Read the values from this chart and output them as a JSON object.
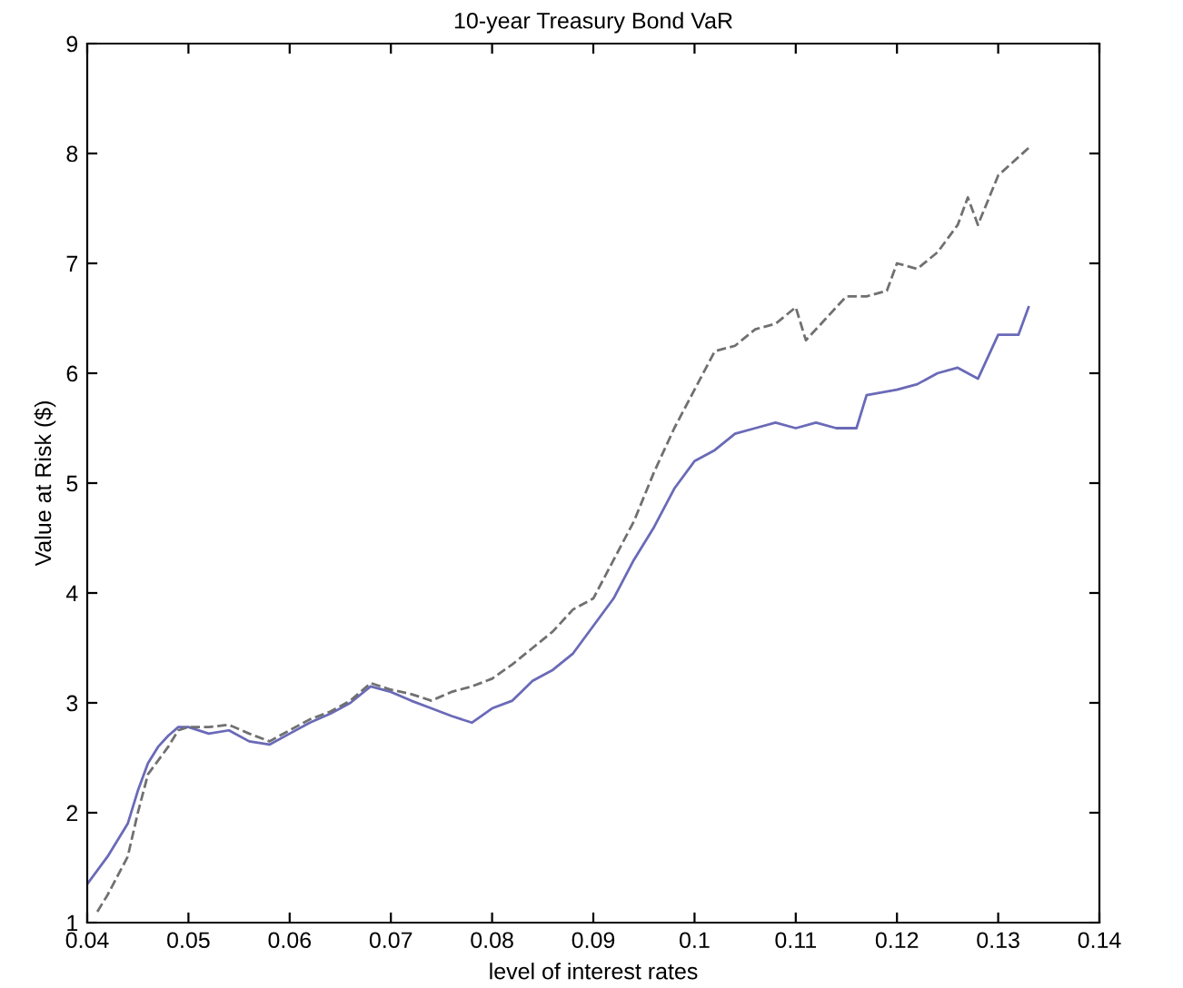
{
  "chart_data": {
    "type": "line",
    "title": "10-year Treasury Bond VaR",
    "xlabel": "level of interest rates",
    "ylabel": "Value at Risk ($)",
    "xlim": [
      0.04,
      0.14
    ],
    "xticks": [
      0.04,
      0.05,
      0.06,
      0.07,
      0.08,
      0.09,
      0.1,
      0.11,
      0.12,
      0.13,
      0.14
    ],
    "ylim": [
      1,
      9
    ],
    "yticks": [
      1,
      2,
      3,
      4,
      5,
      6,
      7,
      8,
      9
    ],
    "grid": false,
    "series": [
      {
        "color": "#6a6ab8",
        "line_style": "solid",
        "x": [
          0.04,
          0.042,
          0.044,
          0.045,
          0.046,
          0.047,
          0.048,
          0.049,
          0.05,
          0.052,
          0.054,
          0.056,
          0.058,
          0.06,
          0.062,
          0.064,
          0.066,
          0.068,
          0.07,
          0.072,
          0.074,
          0.076,
          0.078,
          0.08,
          0.082,
          0.084,
          0.086,
          0.088,
          0.09,
          0.092,
          0.094,
          0.096,
          0.098,
          0.1,
          0.102,
          0.104,
          0.106,
          0.108,
          0.11,
          0.112,
          0.114,
          0.116,
          0.117,
          0.12,
          0.122,
          0.124,
          0.126,
          0.128,
          0.13,
          0.132,
          0.133
        ],
        "values": [
          1.35,
          1.6,
          1.9,
          2.2,
          2.45,
          2.6,
          2.7,
          2.78,
          2.78,
          2.72,
          2.75,
          2.65,
          2.62,
          2.72,
          2.82,
          2.9,
          3.0,
          3.15,
          3.1,
          3.02,
          2.95,
          2.88,
          2.82,
          2.95,
          3.02,
          3.2,
          3.3,
          3.45,
          3.7,
          3.95,
          4.3,
          4.6,
          4.95,
          5.2,
          5.3,
          5.45,
          5.5,
          5.55,
          5.5,
          5.55,
          5.5,
          5.5,
          5.8,
          5.85,
          5.9,
          6.0,
          6.05,
          5.95,
          6.35,
          6.35,
          6.6
        ]
      },
      {
        "color": "#707070",
        "line_style": "dashed",
        "x": [
          0.041,
          0.042,
          0.044,
          0.045,
          0.046,
          0.048,
          0.049,
          0.05,
          0.052,
          0.054,
          0.056,
          0.058,
          0.06,
          0.062,
          0.064,
          0.066,
          0.068,
          0.07,
          0.072,
          0.074,
          0.076,
          0.078,
          0.08,
          0.082,
          0.084,
          0.086,
          0.088,
          0.09,
          0.092,
          0.094,
          0.096,
          0.098,
          0.1,
          0.102,
          0.104,
          0.106,
          0.108,
          0.11,
          0.111,
          0.113,
          0.115,
          0.117,
          0.119,
          0.12,
          0.122,
          0.124,
          0.126,
          0.127,
          0.128,
          0.13,
          0.133
        ],
        "values": [
          1.1,
          1.25,
          1.6,
          2.0,
          2.35,
          2.6,
          2.75,
          2.78,
          2.78,
          2.8,
          2.72,
          2.65,
          2.75,
          2.85,
          2.92,
          3.02,
          3.18,
          3.12,
          3.08,
          3.02,
          3.1,
          3.15,
          3.22,
          3.35,
          3.5,
          3.65,
          3.85,
          3.95,
          4.3,
          4.65,
          5.1,
          5.5,
          5.85,
          6.2,
          6.25,
          6.4,
          6.45,
          6.6,
          6.3,
          6.5,
          6.7,
          6.7,
          6.75,
          7.0,
          6.95,
          7.1,
          7.35,
          7.6,
          7.35,
          7.8,
          8.05
        ]
      }
    ]
  }
}
